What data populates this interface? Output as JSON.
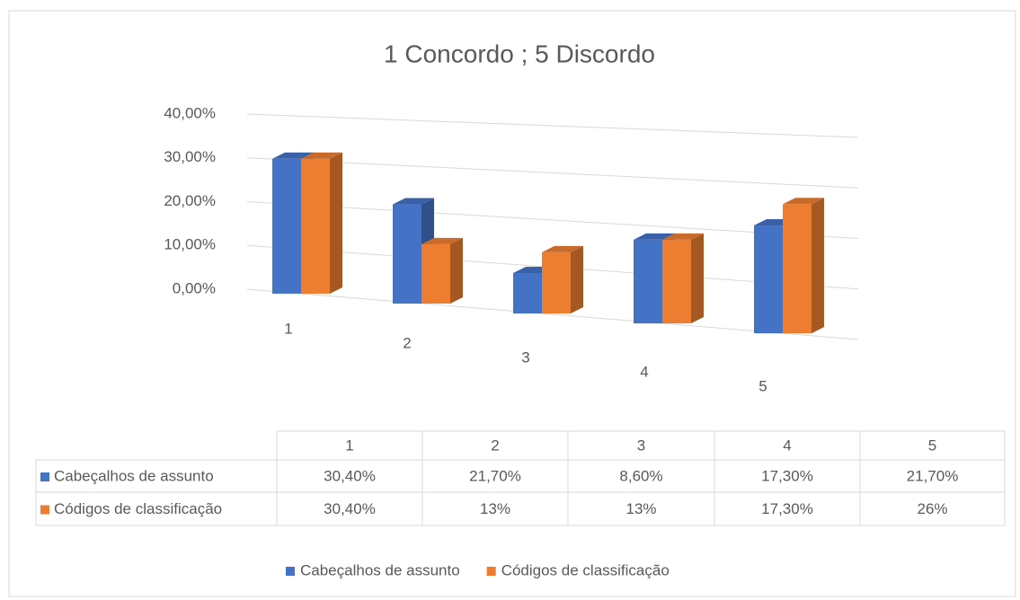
{
  "chart_data": {
    "type": "bar3d",
    "title": "1 Concordo ; 5 Discordo",
    "categories": [
      "1",
      "2",
      "3",
      "4",
      "5"
    ],
    "series": [
      {
        "name": "Cabeçalhos de assunto",
        "color": "#4472c4",
        "values": [
          30.4,
          21.7,
          8.6,
          17.3,
          21.7
        ],
        "value_labels": [
          "30,40%",
          "21,70%",
          "8,60%",
          "17,30%",
          "21,70%"
        ]
      },
      {
        "name": "Códigos de classificação",
        "color": "#ed7d31",
        "values": [
          30.4,
          13,
          13,
          17.3,
          26
        ],
        "value_labels": [
          "30,40%",
          "13%",
          "13%",
          "17,30%",
          "26%"
        ]
      }
    ],
    "ylim": [
      0,
      40
    ],
    "yticks": [
      {
        "value": 0,
        "label": "0,00%"
      },
      {
        "value": 10,
        "label": "10,00%"
      },
      {
        "value": 20,
        "label": "20,00%"
      },
      {
        "value": 30,
        "label": "30,00%"
      },
      {
        "value": 40,
        "label": "40,00%"
      }
    ],
    "grid": true,
    "legend": "bottom",
    "data_table": true
  }
}
